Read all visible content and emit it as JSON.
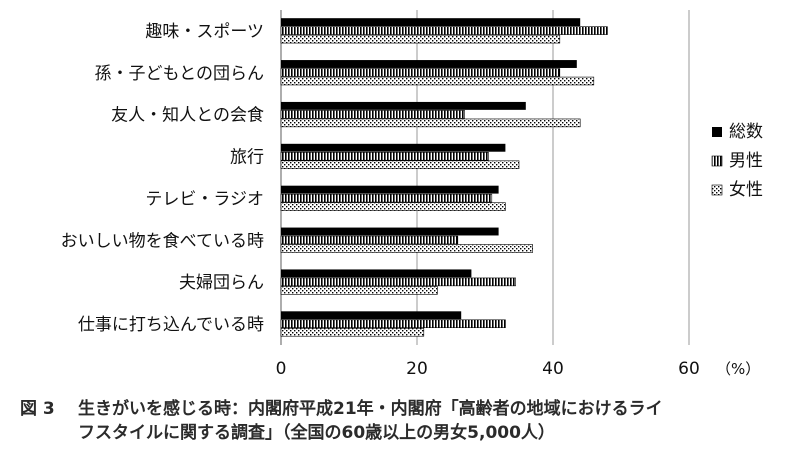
{
  "chart_data": {
    "type": "bar",
    "orientation": "horizontal",
    "categories": [
      "趣味・スポーツ",
      "孫・子どもとの団らん",
      "友人・知人との会食",
      "旅行",
      "テレビ・ラジオ",
      "おいしい物を食べている時",
      "夫婦団らん",
      "仕事に打ち込んでいる時"
    ],
    "series": [
      {
        "name": "総数",
        "values": [
          44.0,
          43.5,
          36.0,
          33.0,
          32.0,
          32.0,
          28.0,
          26.5
        ],
        "pattern": "solid",
        "color": "#000000"
      },
      {
        "name": "男性",
        "values": [
          48.0,
          41.0,
          27.0,
          30.5,
          31.0,
          26.0,
          34.5,
          33.0
        ],
        "pattern": "vertical-stripes",
        "color": "#000000"
      },
      {
        "name": "女性",
        "values": [
          41.0,
          46.0,
          44.0,
          35.0,
          33.0,
          37.0,
          23.0,
          21.0
        ],
        "pattern": "dots",
        "color": "#000000"
      }
    ],
    "xlim": [
      0,
      60
    ],
    "xticks": [
      0,
      20,
      40,
      60
    ],
    "unit_label": "（%）",
    "grid": true,
    "legend_position": "right"
  },
  "caption": {
    "number": "図 3",
    "line1": "生きがいを感じる時：内閣府平成21年・内閣府「高齢者の地域におけるライ",
    "line2": "フスタイルに関する調査」（全国の60歳以上の男女5,000人）"
  }
}
